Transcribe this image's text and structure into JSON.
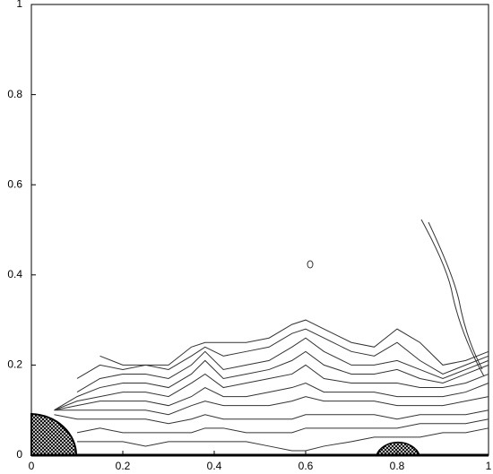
{
  "chart_data": {
    "type": "line",
    "x": [
      0.05,
      0.1,
      0.15,
      0.2,
      0.25,
      0.3,
      0.35,
      0.38,
      0.42,
      0.47,
      0.52,
      0.57,
      0.6,
      0.64,
      0.7,
      0.75,
      0.8,
      0.85,
      0.9,
      0.95,
      1.0
    ],
    "series": [
      {
        "color": "#333333",
        "values": [
          null,
          null,
          0.22,
          0.2,
          0.2,
          0.2,
          0.24,
          0.25,
          0.25,
          0.25,
          0.26,
          0.29,
          0.3,
          0.28,
          0.25,
          0.24,
          0.28,
          0.25,
          0.2,
          0.21,
          0.23
        ]
      },
      {
        "color": "#333333",
        "values": [
          null,
          0.17,
          0.2,
          0.19,
          0.2,
          0.19,
          0.22,
          0.24,
          0.22,
          0.23,
          0.24,
          0.27,
          0.28,
          0.26,
          0.23,
          0.22,
          0.25,
          0.21,
          0.18,
          0.2,
          0.22
        ]
      },
      {
        "color": "#333333",
        "values": [
          null,
          0.14,
          0.17,
          0.18,
          0.18,
          0.17,
          0.2,
          0.23,
          0.19,
          0.2,
          0.21,
          0.24,
          0.26,
          0.23,
          0.2,
          0.2,
          0.21,
          0.19,
          0.17,
          0.19,
          0.21
        ]
      },
      {
        "color": "#333333",
        "values": [
          0.1,
          0.13,
          0.15,
          0.16,
          0.16,
          0.15,
          0.18,
          0.21,
          0.17,
          0.18,
          0.19,
          0.21,
          0.23,
          0.2,
          0.18,
          0.18,
          0.19,
          0.17,
          0.16,
          0.18,
          0.2
        ]
      },
      {
        "color": "#333333",
        "values": [
          0.1,
          0.12,
          0.13,
          0.14,
          0.14,
          0.13,
          0.16,
          0.18,
          0.15,
          0.16,
          0.17,
          0.18,
          0.2,
          0.17,
          0.16,
          0.16,
          0.16,
          0.15,
          0.15,
          0.16,
          0.18
        ]
      },
      {
        "color": "#333333",
        "values": [
          0.1,
          0.11,
          0.12,
          0.12,
          0.12,
          0.11,
          0.13,
          0.15,
          0.13,
          0.13,
          0.14,
          0.15,
          0.16,
          0.14,
          0.14,
          0.14,
          0.13,
          0.13,
          0.13,
          0.14,
          0.16
        ]
      },
      {
        "color": "#333333",
        "values": [
          0.1,
          0.1,
          0.1,
          0.1,
          0.1,
          0.09,
          0.11,
          0.12,
          0.11,
          0.11,
          0.11,
          0.12,
          0.13,
          0.12,
          0.12,
          0.12,
          0.11,
          0.11,
          0.11,
          0.12,
          0.13
        ]
      },
      {
        "color": "#333333",
        "values": [
          0.09,
          0.08,
          0.08,
          0.08,
          0.08,
          0.07,
          0.08,
          0.09,
          0.08,
          0.08,
          0.08,
          0.08,
          0.09,
          0.09,
          0.09,
          0.09,
          0.08,
          0.09,
          0.09,
          0.09,
          0.1
        ]
      },
      {
        "color": "#333333",
        "values": [
          null,
          0.05,
          0.06,
          0.05,
          0.05,
          0.05,
          0.05,
          0.06,
          0.06,
          0.05,
          0.05,
          0.05,
          0.06,
          0.06,
          0.06,
          0.06,
          0.06,
          0.07,
          0.07,
          0.07,
          0.08
        ]
      },
      {
        "color": "#333333",
        "values": [
          null,
          0.03,
          0.03,
          0.03,
          0.02,
          0.03,
          0.03,
          0.03,
          0.03,
          0.03,
          0.02,
          0.01,
          0.01,
          0.02,
          0.03,
          0.04,
          0.04,
          0.04,
          0.05,
          0.05,
          0.06
        ]
      }
    ],
    "xlim": [
      0,
      1
    ],
    "ylim": [
      0,
      1
    ],
    "xticks": [
      0,
      0.2,
      0.4,
      0.6,
      0.8,
      1
    ],
    "yticks": [
      0,
      0.2,
      0.4,
      0.6,
      0.8,
      1
    ]
  }
}
